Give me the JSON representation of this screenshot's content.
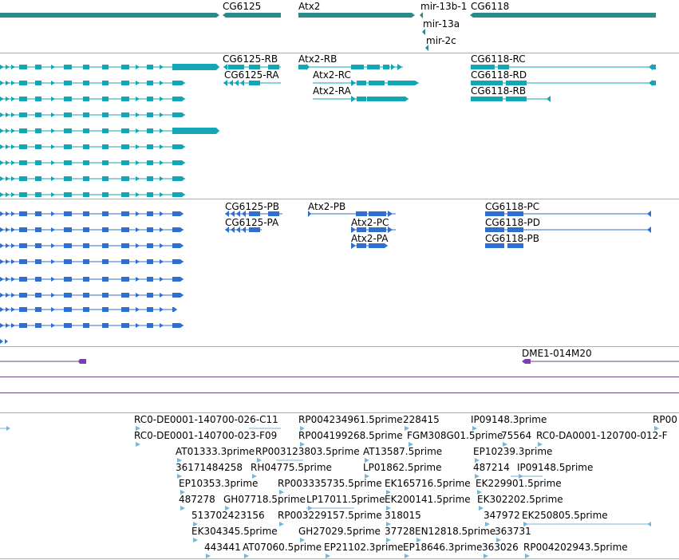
{
  "colors": {
    "gene": "#2a8a8a",
    "transcript": "#12a6b6",
    "protein": "#2f6fd0",
    "clone": "#7a3fb0",
    "clone_line": "#6a4a8a",
    "est": "#7ab4d8",
    "divider": "#b0b0b0"
  },
  "tracks": {
    "genes": {
      "labels": [
        "CG6125",
        "Atx2",
        "mir-13b-1",
        "CG6118",
        "mir-13a",
        "mir-2c"
      ]
    },
    "transcripts": {
      "labels": [
        "CG6125-RB",
        "CG6125-RA",
        "Atx2-RB",
        "Atx2-RC",
        "Atx2-RA",
        "CG6118-RC",
        "CG6118-RD",
        "CG6118-RB"
      ]
    },
    "proteins": {
      "labels": [
        "CG6125-PB",
        "CG6125-PA",
        "Atx2-PB",
        "Atx2-PC",
        "Atx2-PA",
        "CG6118-PC",
        "CG6118-PD",
        "CG6118-PB"
      ]
    },
    "clones": {
      "labels": [
        "DME1-014M20"
      ]
    },
    "ests": {
      "labels": [
        "RC0-DE0001-140700-026-C11",
        "RP004234961.5prime",
        "228415",
        "IP09148.3prime",
        "RP00",
        "RC0-DE0001-140700-023-F09",
        "RP004199268.5prime",
        "FGM308G01.5prime",
        "75564",
        "RC0-DA0001-120700-012-F",
        "AT01333.3prime",
        "RP003123803.5prime",
        "AT13587.5prime",
        "EP10239.3prime",
        "36171484258",
        "RH04775.5prime",
        "LP01862.5prime",
        "487214",
        "IP09148.5prime",
        "EP10353.3prime",
        "RP003335735.5prime",
        "EK165716.5prime",
        "EK229901.5prime",
        "487278",
        "GH07718.5prime",
        "LP17011.5prime",
        "EK200141.5prime",
        "EK302202.5prime",
        "513702423156",
        "RP003229157.5prime",
        "318015",
        "347972",
        "EK250805.5prime",
        "EK304345.5prime",
        "GH27029.5prime",
        "37728",
        "EN12818.5prime",
        "363731",
        "443441",
        "AT07060.5prime",
        "EP21102.3prime",
        "EP18646.3prime",
        "363026",
        "RP004202943.5prime"
      ]
    }
  }
}
